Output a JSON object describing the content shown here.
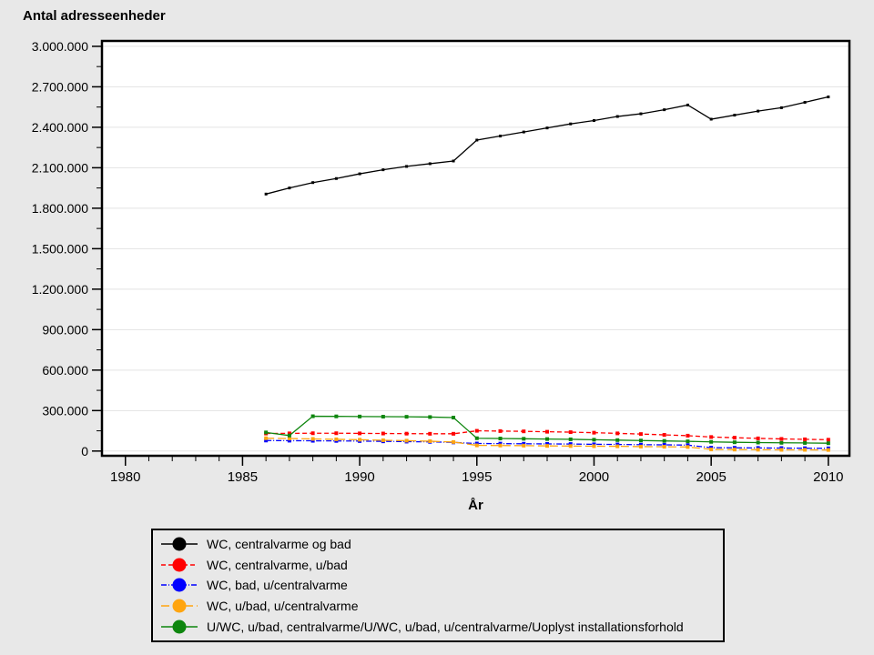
{
  "chart_data": {
    "type": "line",
    "title": "Antal adresseenheder",
    "xlabel": "År",
    "ylabel": "",
    "grid": "horizontal-major-only",
    "legend_position": "bottom-outside",
    "plot_background": "#ffffff",
    "page_background": "#e8e8e8",
    "xlim": [
      1979,
      2010.9
    ],
    "ylim": [
      -35000,
      3040000
    ],
    "x_major_ticks": [
      1980,
      1985,
      1990,
      1995,
      2000,
      2005,
      2010
    ],
    "x_minor_tick_step_years": 1,
    "y_major_tick_step": 300000,
    "y_minor_tick_step": 150000,
    "y_tick_labels": [
      "0",
      "300.000",
      "600.000",
      "900.000",
      "1.200.000",
      "1.500.000",
      "1.800.000",
      "2.100.000",
      "2.400.000",
      "2.700.000",
      "3.000.000"
    ],
    "x": [
      1986,
      1987,
      1988,
      1989,
      1990,
      1991,
      1992,
      1993,
      1994,
      1995,
      1996,
      1997,
      1998,
      1999,
      2000,
      2001,
      2002,
      2003,
      2004,
      2005,
      2006,
      2007,
      2008,
      2009,
      2010
    ],
    "series": [
      {
        "name": "WC, centralvarme og bad",
        "color": "#000000",
        "dash": "solid",
        "values": [
          1905000,
          1950000,
          1990000,
          2020000,
          2055000,
          2085000,
          2110000,
          2130000,
          2150000,
          2305000,
          2335000,
          2365000,
          2395000,
          2425000,
          2450000,
          2480000,
          2500000,
          2530000,
          2565000,
          2460000,
          2490000,
          2520000,
          2545000,
          2585000,
          2625000
        ]
      },
      {
        "name": "WC, centralvarme, u/bad",
        "color": "#ff0000",
        "dash": "dashed",
        "values": [
          130000,
          131000,
          132000,
          132000,
          131000,
          130000,
          129000,
          128000,
          128000,
          150000,
          148000,
          146000,
          143000,
          140000,
          136000,
          131000,
          126000,
          120000,
          114000,
          104000,
          99000,
          94000,
          90000,
          87000,
          84000
        ]
      },
      {
        "name": "WC, bad, u/centralvarme",
        "color": "#0000ff",
        "dash": "dashdot",
        "values": [
          78000,
          77000,
          76000,
          75000,
          74000,
          72000,
          70000,
          68000,
          64000,
          56000,
          55000,
          54000,
          53000,
          52000,
          50000,
          49000,
          47000,
          46000,
          44000,
          25000,
          24000,
          23000,
          22000,
          21000,
          20000
        ]
      },
      {
        "name": "WC, u/bad, u/centralvarme",
        "color": "#ffa510",
        "dash": "longdash",
        "values": [
          95000,
          93000,
          90000,
          87000,
          84000,
          80000,
          77000,
          73000,
          67000,
          42000,
          41000,
          40000,
          38000,
          37000,
          36000,
          35000,
          33000,
          32000,
          30000,
          12000,
          11000,
          10000,
          9000,
          9000,
          8000
        ]
      },
      {
        "name": "U/WC, u/bad, centralvarme/U/WC, u/bad, u/centralvarme/Uoplyst installationsforhold",
        "color": "#0e860e",
        "dash": "solid",
        "values": [
          138000,
          115000,
          258000,
          257000,
          256000,
          255000,
          254000,
          252000,
          248000,
          95000,
          93000,
          91000,
          89000,
          87000,
          84000,
          81000,
          78000,
          75000,
          72000,
          68000,
          65000,
          63000,
          61000,
          60000,
          58000
        ]
      }
    ]
  }
}
